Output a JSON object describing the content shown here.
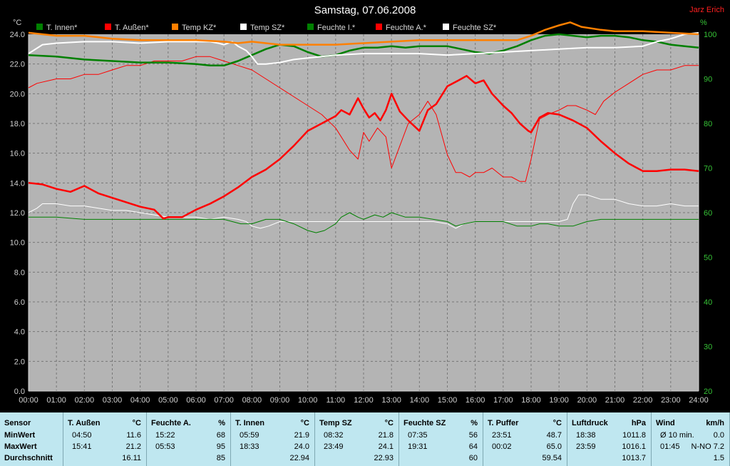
{
  "title": "Samstag, 07.06.2008",
  "author": "Jarz Erich",
  "unit_left": "°C",
  "unit_right": "%",
  "legend": [
    {
      "label": "T. Innen*",
      "color": "#008000"
    },
    {
      "label": "T. Außen*",
      "color": "#ff0000"
    },
    {
      "label": "Temp KZ*",
      "color": "#ff8000"
    },
    {
      "label": "Temp SZ*",
      "color": "#ffffff"
    },
    {
      "label": "Feuchte I.*",
      "color": "#008000"
    },
    {
      "label": "Feuchte A.*",
      "color": "#ff0000"
    },
    {
      "label": "Feuchte SZ*",
      "color": "#ffffff"
    }
  ],
  "chart_data": {
    "type": "line",
    "title": "Samstag, 07.06.2008",
    "xlim": [
      0,
      24
    ],
    "ylim_left": [
      0,
      24
    ],
    "ylim_right": [
      20,
      100
    ],
    "x_ticks": [
      "00:00",
      "01:00",
      "02:00",
      "03:00",
      "04:00",
      "05:00",
      "06:00",
      "07:00",
      "08:00",
      "09:00",
      "10:00",
      "11:00",
      "12:00",
      "13:00",
      "14:00",
      "15:00",
      "16:00",
      "17:00",
      "18:00",
      "19:00",
      "20:00",
      "21:00",
      "22:00",
      "23:00",
      "24:00"
    ],
    "y_ticks_left": [
      "0.0",
      "2.0",
      "4.0",
      "6.0",
      "8.0",
      "10.0",
      "12.0",
      "14.0",
      "16.0",
      "18.0",
      "20.0",
      "22.0",
      "24.0"
    ],
    "y_ticks_right": [
      "20",
      "30",
      "40",
      "50",
      "60",
      "70",
      "80",
      "90",
      "100"
    ],
    "grid": true,
    "series": [
      {
        "name": "T. Innen*",
        "axis": "left",
        "color": "#008000",
        "width": 2.5,
        "x": [
          0,
          1,
          2,
          3,
          4,
          5,
          6,
          6.5,
          7,
          7.5,
          8,
          8.5,
          9,
          9.5,
          10,
          10.5,
          11,
          11.5,
          12,
          12.5,
          13,
          13.5,
          14,
          14.5,
          15,
          15.5,
          16,
          16.5,
          17,
          17.5,
          18,
          18.5,
          19,
          19.5,
          20,
          20.5,
          21,
          21.5,
          22,
          22.5,
          23,
          23.5,
          24
        ],
        "y": [
          22.6,
          22.5,
          22.3,
          22.2,
          22.1,
          22.1,
          22.0,
          21.9,
          21.9,
          22.2,
          22.6,
          23.0,
          23.3,
          23.2,
          22.8,
          22.5,
          22.6,
          22.9,
          23.1,
          23.1,
          23.2,
          23.1,
          23.2,
          23.2,
          23.2,
          23.0,
          22.8,
          22.7,
          22.9,
          23.2,
          23.6,
          23.9,
          24.0,
          23.9,
          23.8,
          23.9,
          23.9,
          23.8,
          23.6,
          23.5,
          23.3,
          23.2,
          23.1
        ]
      },
      {
        "name": "T. Außen*",
        "axis": "left",
        "color": "#ff0000",
        "width": 2.5,
        "x": [
          0,
          0.5,
          1,
          1.5,
          2,
          2.5,
          3,
          3.5,
          4,
          4.5,
          4.83,
          5,
          5.5,
          6,
          6.5,
          7,
          7.5,
          8,
          8.5,
          9,
          9.5,
          10,
          10.5,
          11,
          11.2,
          11.5,
          11.8,
          12,
          12.2,
          12.4,
          12.6,
          12.8,
          13,
          13.3,
          13.6,
          14,
          14.3,
          14.6,
          15,
          15.4,
          15.69,
          16,
          16.3,
          16.6,
          17,
          17.3,
          17.6,
          17.9,
          18,
          18.3,
          18.6,
          19,
          19.5,
          20,
          20.5,
          21,
          21.5,
          22,
          22.5,
          23,
          23.5,
          24
        ],
        "y": [
          14.0,
          13.9,
          13.6,
          13.4,
          13.8,
          13.3,
          13.0,
          12.7,
          12.4,
          12.2,
          11.6,
          11.7,
          11.7,
          12.2,
          12.6,
          13.1,
          13.7,
          14.4,
          14.9,
          15.6,
          16.5,
          17.5,
          18.0,
          18.5,
          18.9,
          18.6,
          19.7,
          19.0,
          18.4,
          18.7,
          18.2,
          18.9,
          20.0,
          18.8,
          18.2,
          17.5,
          18.9,
          19.3,
          20.5,
          20.9,
          21.2,
          20.7,
          20.9,
          20.0,
          19.2,
          18.7,
          18.0,
          17.5,
          17.4,
          18.4,
          18.7,
          18.6,
          18.2,
          17.7,
          16.8,
          16.0,
          15.3,
          14.8,
          14.8,
          14.9,
          14.9,
          14.8
        ]
      },
      {
        "name": "Temp KZ*",
        "axis": "left",
        "color": "#ff8000",
        "width": 2.5,
        "x": [
          0,
          1,
          2,
          3,
          4,
          5,
          6,
          7,
          7.5,
          8,
          8.5,
          9,
          10,
          11,
          12,
          13,
          14,
          15,
          16,
          17,
          17.5,
          18,
          18.5,
          19,
          19.4,
          19.8,
          20.5,
          21,
          22,
          23,
          24
        ],
        "y": [
          24.1,
          23.9,
          23.9,
          23.7,
          23.6,
          23.6,
          23.6,
          23.5,
          23.4,
          23.5,
          23.4,
          23.3,
          23.3,
          23.3,
          23.4,
          23.5,
          23.6,
          23.6,
          23.6,
          23.6,
          23.6,
          23.9,
          24.3,
          24.6,
          24.8,
          24.5,
          24.3,
          24.2,
          24.2,
          24.1,
          24.0
        ]
      },
      {
        "name": "Temp SZ*",
        "axis": "left",
        "color": "#ffffff",
        "width": 2,
        "x": [
          0,
          0.5,
          1,
          2,
          3,
          4,
          5,
          6,
          6.5,
          6.8,
          7,
          7.3,
          7.5,
          7.8,
          8,
          8.2,
          8.5,
          9,
          9.5,
          10,
          11,
          12,
          13,
          14,
          15,
          16,
          17,
          18,
          19,
          20,
          21,
          22,
          22.5,
          23,
          23.5,
          24
        ],
        "y": [
          22.7,
          23.3,
          23.4,
          23.5,
          23.5,
          23.4,
          23.5,
          23.5,
          23.5,
          23.4,
          23.3,
          23.5,
          23.2,
          22.9,
          22.5,
          22.0,
          22.0,
          22.1,
          22.3,
          22.4,
          22.6,
          22.7,
          22.7,
          22.7,
          22.6,
          22.7,
          22.8,
          22.9,
          23.0,
          23.1,
          23.1,
          23.2,
          23.5,
          23.7,
          24.0,
          24.1
        ]
      },
      {
        "name": "Feuchte I.*",
        "axis": "right",
        "color": "#008000",
        "width": 1,
        "x": [
          0,
          1,
          2,
          3,
          4,
          5,
          6,
          7,
          7.3,
          7.6,
          8,
          8.5,
          9,
          9.5,
          10,
          10.3,
          10.6,
          11,
          11.2,
          11.5,
          11.8,
          12,
          12.4,
          12.7,
          13,
          13.5,
          14,
          14.5,
          15,
          15.3,
          15.6,
          16,
          16.5,
          17,
          17.5,
          18,
          18.3,
          18.6,
          19,
          19.5,
          20,
          20.5,
          21,
          22,
          23,
          24
        ],
        "y": [
          59,
          59,
          58.5,
          58.5,
          58.5,
          58.5,
          58.5,
          58.5,
          58,
          57.5,
          57.5,
          58.5,
          58.5,
          57.5,
          56,
          55.5,
          56,
          57.5,
          59,
          60,
          59,
          58.5,
          59.5,
          59,
          60,
          59,
          59,
          58.5,
          58,
          57,
          57.5,
          58,
          58,
          58,
          57,
          57,
          57.5,
          57.5,
          57,
          57,
          58,
          58.5,
          58.5,
          58.5,
          58.5,
          58.5
        ]
      },
      {
        "name": "Feuchte A.*",
        "axis": "right",
        "color": "#ff0000",
        "width": 1,
        "x": [
          0,
          0.3,
          1,
          1.5,
          2,
          2.5,
          3,
          3.5,
          4,
          4.5,
          5,
          5.5,
          6,
          6.5,
          7,
          7.5,
          8,
          8.5,
          9,
          9.5,
          10,
          10.5,
          11,
          11.2,
          11.5,
          11.8,
          12,
          12.2,
          12.5,
          12.8,
          13,
          13.3,
          13.6,
          14,
          14.3,
          14.6,
          15,
          15.3,
          15.5,
          15.8,
          16,
          16.3,
          16.6,
          17,
          17.3,
          17.6,
          17.8,
          18,
          18.3,
          18.6,
          19,
          19.3,
          19.6,
          20,
          20.3,
          20.6,
          21,
          21.5,
          22,
          22.5,
          23,
          23.5,
          24
        ],
        "y": [
          88,
          89,
          90,
          90,
          91,
          91,
          92,
          93,
          93,
          94,
          94,
          94,
          95,
          95,
          94,
          93,
          92,
          90,
          88,
          86,
          84,
          82,
          79,
          77,
          74,
          72,
          78,
          76,
          79,
          77,
          70,
          75,
          80,
          82,
          85,
          82,
          73,
          69,
          69,
          68,
          69,
          69,
          70,
          68,
          68,
          67,
          67,
          72,
          81,
          82,
          83,
          84,
          84,
          83,
          82,
          85,
          87,
          89,
          91,
          92,
          92,
          93,
          93
        ]
      },
      {
        "name": "Feuchte SZ*",
        "axis": "right",
        "color": "#ffffff",
        "width": 1,
        "x": [
          0,
          0.3,
          0.5,
          1,
          1.5,
          2,
          2.5,
          3,
          3.5,
          4,
          4.5,
          5,
          5.5,
          6,
          6.5,
          7,
          7.5,
          7.8,
          8,
          8.3,
          8.6,
          9,
          10,
          11,
          12,
          13,
          14,
          14.5,
          15,
          15.3,
          15.6,
          16,
          16.5,
          17,
          17.5,
          18,
          18.5,
          19,
          19.3,
          19.5,
          19.7,
          20,
          20.5,
          21,
          21.5,
          22,
          22.5,
          23,
          23.5,
          24
        ],
        "y": [
          60,
          61,
          62,
          62,
          61.5,
          61.5,
          61,
          60.5,
          60.5,
          60,
          59.5,
          59,
          59,
          59,
          58.5,
          59,
          58.5,
          58,
          57,
          56.5,
          57,
          58,
          58,
          58,
          58,
          58,
          58,
          58,
          57.5,
          56.5,
          57.5,
          58,
          58,
          58,
          58,
          58,
          58,
          58,
          58.5,
          62,
          64,
          64,
          63,
          63,
          62,
          61.5,
          61.5,
          62,
          61.5,
          61.5
        ]
      }
    ]
  },
  "table": {
    "columns": [
      {
        "name": "Sensor",
        "unit": "",
        "rows": [
          {
            "time": "MinWert",
            "value": ""
          },
          {
            "time": "MaxWert",
            "value": ""
          },
          {
            "time": "Durchschnitt",
            "value": ""
          }
        ]
      },
      {
        "name": "T. Außen",
        "unit": "°C",
        "rows": [
          {
            "time": "04:50",
            "value": "11.6"
          },
          {
            "time": "15:41",
            "value": "21.2"
          },
          {
            "time": "",
            "value": "16.11"
          }
        ]
      },
      {
        "name": "Feuchte A.",
        "unit": "%",
        "rows": [
          {
            "time": "15:22",
            "value": "68"
          },
          {
            "time": "05:53",
            "value": "95"
          },
          {
            "time": "",
            "value": "85"
          }
        ]
      },
      {
        "name": "T. Innen",
        "unit": "°C",
        "rows": [
          {
            "time": "05:59",
            "value": "21.9"
          },
          {
            "time": "18:33",
            "value": "24.0"
          },
          {
            "time": "",
            "value": "22.94"
          }
        ]
      },
      {
        "name": "Temp SZ",
        "unit": "°C",
        "rows": [
          {
            "time": "08:32",
            "value": "21.8"
          },
          {
            "time": "23:49",
            "value": "24.1"
          },
          {
            "time": "",
            "value": "22.93"
          }
        ]
      },
      {
        "name": "Feuchte SZ",
        "unit": "%",
        "rows": [
          {
            "time": "07:35",
            "value": "56"
          },
          {
            "time": "19:31",
            "value": "64"
          },
          {
            "time": "",
            "value": "60"
          }
        ]
      },
      {
        "name": "T. Puffer",
        "unit": "°C",
        "rows": [
          {
            "time": "23:51",
            "value": "48.7"
          },
          {
            "time": "00:02",
            "value": "65.0"
          },
          {
            "time": "",
            "value": "59.54"
          }
        ]
      },
      {
        "name": "Luftdruck",
        "unit": "hPa",
        "rows": [
          {
            "time": "18:38",
            "value": "1011.8"
          },
          {
            "time": "23:59",
            "value": "1016.1"
          },
          {
            "time": "",
            "value": "1013.7"
          }
        ]
      },
      {
        "name": "Wind",
        "unit": "km/h",
        "rows": [
          {
            "time": "Ø 10 min.",
            "value": "0.0"
          },
          {
            "time": "01:45",
            "value": "N-NO 7.2"
          },
          {
            "time": "",
            "value": "1.5"
          }
        ]
      }
    ]
  }
}
